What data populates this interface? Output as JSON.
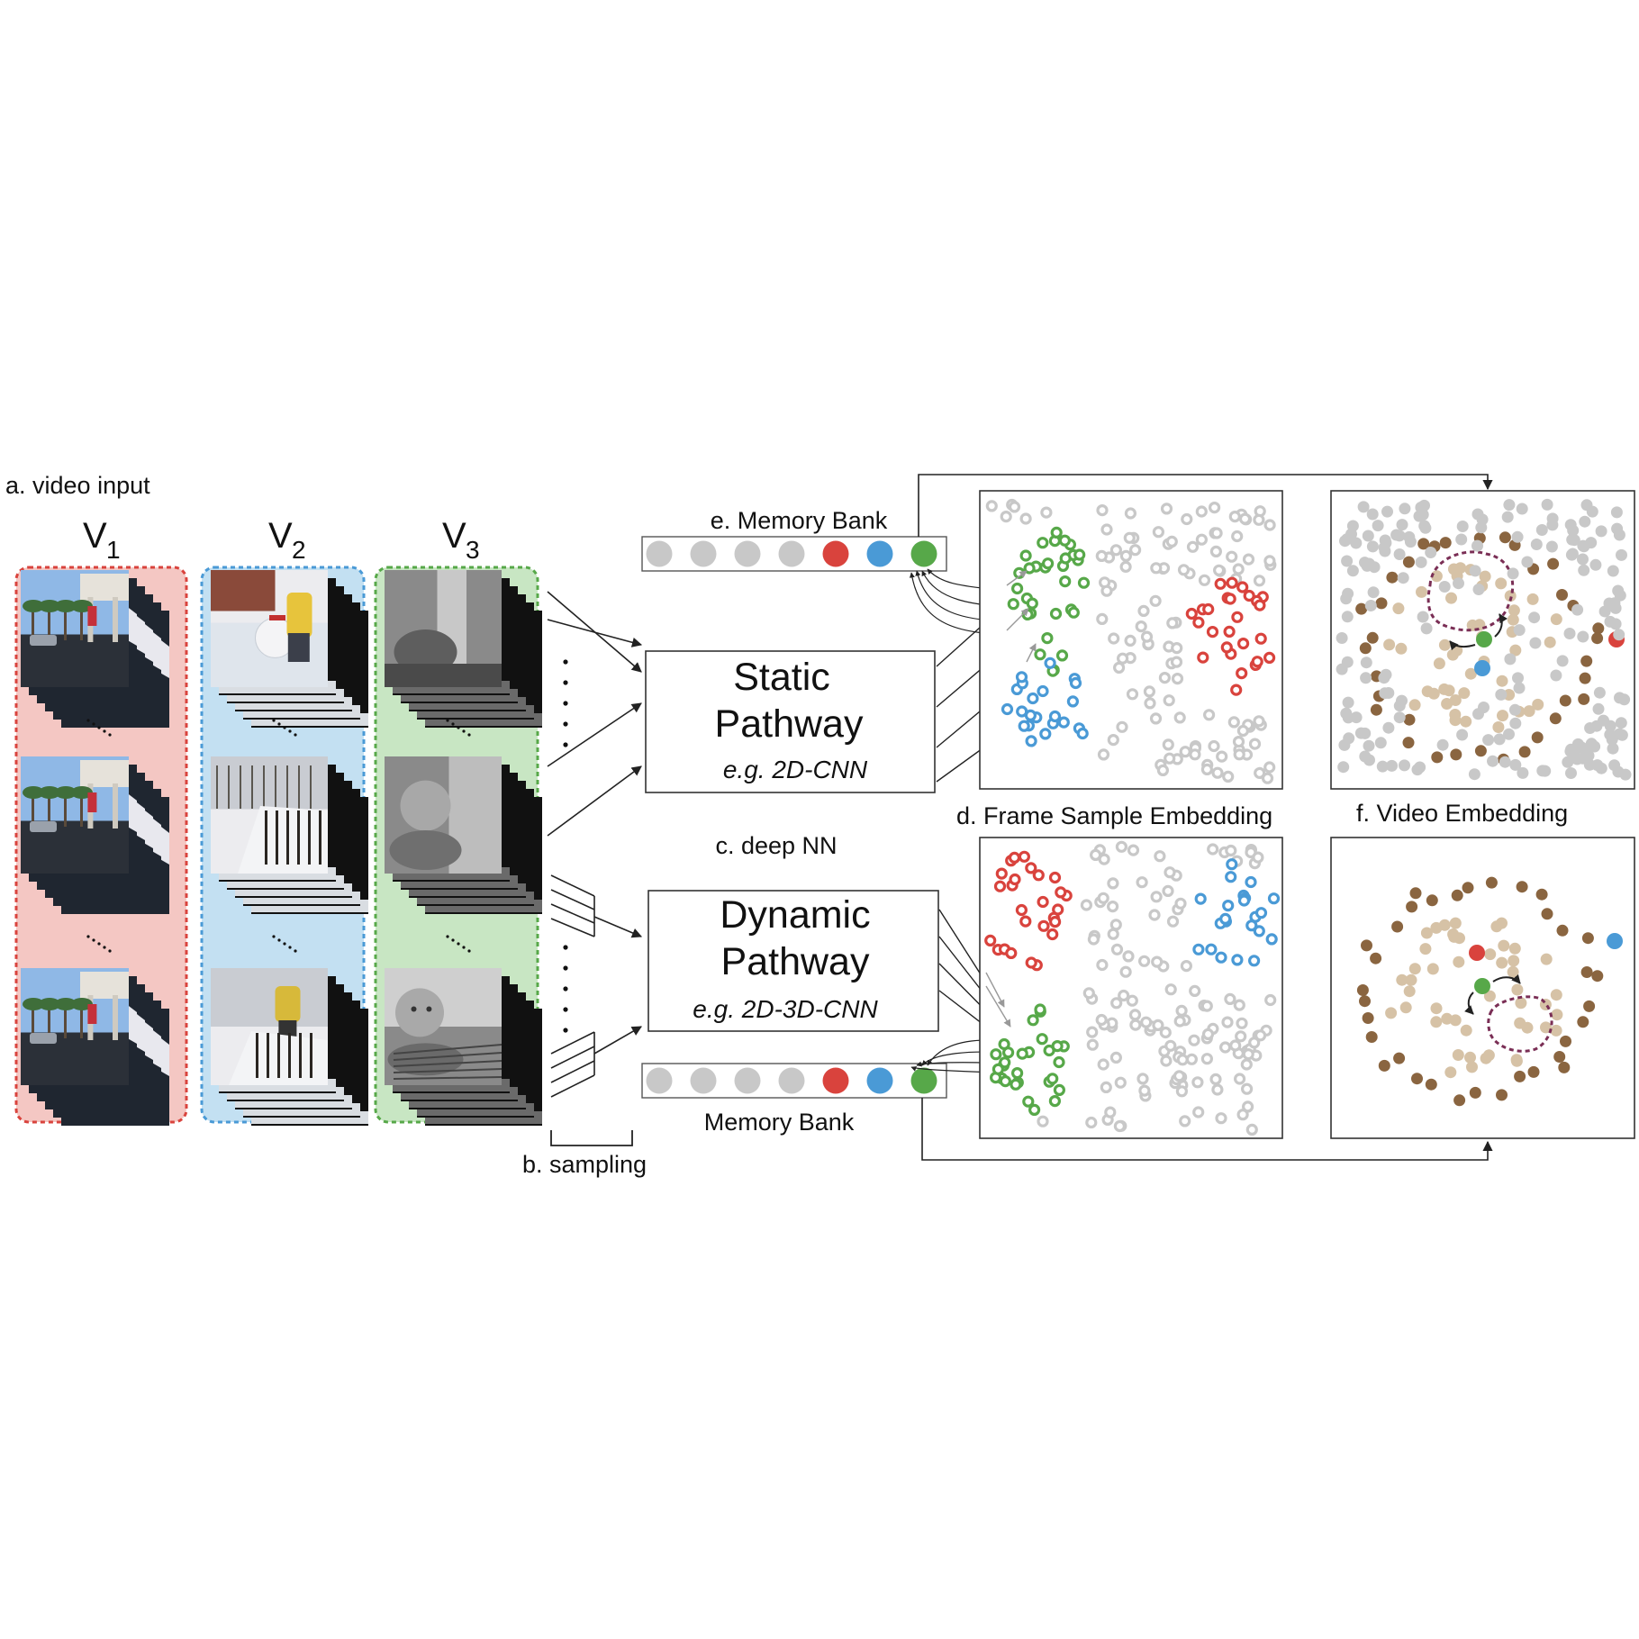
{
  "labels": {
    "video_input": "a. video input",
    "sampling": "b. sampling",
    "deep_nn": "c. deep NN",
    "frame_embedding": "d. Frame Sample Embedding",
    "memory_bank_top": "e. Memory Bank",
    "memory_bank_bottom": "Memory Bank",
    "video_embedding": "f. Video Embedding"
  },
  "videos": [
    {
      "letter": "V",
      "index": "1",
      "color": "#d9433d",
      "fill": "#f4c7c3",
      "scene": "street"
    },
    {
      "letter": "V",
      "index": "2",
      "color": "#4a9ad6",
      "fill": "#c3e0f2",
      "scene": "snow"
    },
    {
      "letter": "V",
      "index": "3",
      "color": "#57a849",
      "fill": "#c8e6c3",
      "scene": "baby"
    }
  ],
  "static_pathway": {
    "line1": "Static",
    "line2": "Pathway",
    "example": "e.g. 2D-CNN"
  },
  "dynamic_pathway": {
    "line1": "Dynamic",
    "line2": "Pathway",
    "example": "e.g. 2D-3D-CNN"
  },
  "memory_bank_slots": [
    "#c8c8c8",
    "#c8c8c8",
    "#c8c8c8",
    "#c8c8c8",
    "#d9433d",
    "#4a9ad6",
    "#57a849"
  ],
  "colors": {
    "red": "#d9433d",
    "blue": "#4a9ad6",
    "green": "#57a849",
    "gray": "#c8c8c8",
    "brown_dark": "#8a6540",
    "brown_light": "#d6c2a6",
    "purple": "#7a2e55"
  }
}
